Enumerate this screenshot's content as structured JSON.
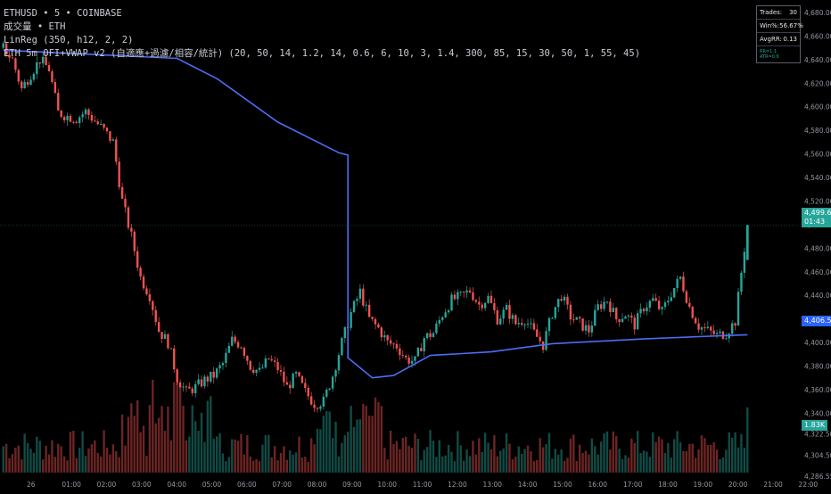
{
  "legend": {
    "line1": "ETHUSD • 5 • COINBASE",
    "line2": "成交量 • ETH",
    "line3": "LinReg (350, h12, 2, 2)",
    "line4": "ETH 5m OFI+VWAP v2 (自適應+過濾/相容/統計) (20, 50, 14, 1.2, 14, 0.6, 6, 10, 3, 1.4, 300, 85, 15, 30, 50, 1, 55, 45)"
  },
  "stats_table": {
    "trades_label": "Trades:",
    "trades_value": "30",
    "winrate_label": "Win%:",
    "winrate_value": "56.67%",
    "avgrr_label": "AvgRR:",
    "avgrr_value": "0.13",
    "footer": "RR=1:1 ATR=0.6"
  },
  "last_price": {
    "price": "4,499.63",
    "countdown": "01:43",
    "color": "#26a69a"
  },
  "vwap_price": {
    "price": "4,406.55",
    "color": "#2962ff"
  },
  "volume_tag": {
    "value": "1.83K",
    "color": "#26a69a"
  },
  "colors": {
    "up": "#26a69a",
    "down": "#ef5350",
    "vwap": "#4c6ef5",
    "bg": "#000000"
  },
  "chart_data": {
    "type": "candlestick",
    "y_ticks": [
      "4,680.00",
      "4,660.00",
      "4,640.00",
      "4,620.00",
      "4,600.00",
      "4,580.00",
      "4,560.00",
      "4,540.00",
      "4,520.00",
      "4,500.00",
      "4,480.00",
      "4,460.00",
      "4,440.00",
      "4,420.00",
      "4,400.00",
      "4,380.00",
      "4,360.00",
      "4,340.00",
      "4,322.50",
      "4,304.50",
      "4,286.55"
    ],
    "x_ticks": [
      "26",
      "01:00",
      "02:00",
      "03:00",
      "04:00",
      "05:00",
      "06:00",
      "07:00",
      "08:00",
      "09:00",
      "10:00",
      "11:00",
      "12:00",
      "13:00",
      "14:00",
      "15:00",
      "16:00",
      "17:00",
      "18:00",
      "19:00",
      "20:00",
      "21:00",
      "22:00"
    ],
    "ylim": [
      4286.55,
      4680
    ],
    "close_path": [
      [
        0,
        4650
      ],
      [
        3,
        4640
      ],
      [
        6,
        4615
      ],
      [
        9,
        4628
      ],
      [
        12,
        4640
      ],
      [
        15,
        4632
      ],
      [
        18,
        4595
      ],
      [
        21,
        4592
      ],
      [
        24,
        4590
      ],
      [
        27,
        4596
      ],
      [
        30,
        4588
      ],
      [
        33,
        4580
      ],
      [
        36,
        4570
      ],
      [
        39,
        4520
      ],
      [
        42,
        4490
      ],
      [
        45,
        4455
      ],
      [
        48,
        4440
      ],
      [
        51,
        4410
      ],
      [
        54,
        4400
      ],
      [
        57,
        4370
      ],
      [
        60,
        4358
      ],
      [
        63,
        4362
      ],
      [
        66,
        4368
      ],
      [
        69,
        4372
      ],
      [
        72,
        4382
      ],
      [
        75,
        4402
      ],
      [
        78,
        4398
      ],
      [
        81,
        4380
      ],
      [
        84,
        4375
      ],
      [
        87,
        4386
      ],
      [
        90,
        4378
      ],
      [
        93,
        4362
      ],
      [
        96,
        4372
      ],
      [
        99,
        4358
      ],
      [
        102,
        4348
      ],
      [
        105,
        4350
      ],
      [
        108,
        4372
      ],
      [
        111,
        4400
      ],
      [
        114,
        4425
      ],
      [
        117,
        4443
      ],
      [
        120,
        4420
      ],
      [
        123,
        4412
      ],
      [
        126,
        4400
      ],
      [
        129,
        4397
      ],
      [
        132,
        4386
      ],
      [
        135,
        4384
      ],
      [
        138,
        4404
      ],
      [
        141,
        4408
      ],
      [
        144,
        4424
      ],
      [
        147,
        4436
      ],
      [
        150,
        4439
      ],
      [
        153,
        4444
      ],
      [
        156,
        4432
      ],
      [
        159,
        4438
      ],
      [
        162,
        4420
      ],
      [
        165,
        4428
      ],
      [
        168,
        4416
      ],
      [
        171,
        4420
      ],
      [
        174,
        4408
      ],
      [
        177,
        4398
      ],
      [
        180,
        4425
      ],
      [
        183,
        4440
      ],
      [
        186,
        4422
      ],
      [
        189,
        4416
      ],
      [
        192,
        4410
      ],
      [
        195,
        4430
      ],
      [
        198,
        4436
      ],
      [
        201,
        4420
      ],
      [
        204,
        4424
      ],
      [
        207,
        4415
      ],
      [
        210,
        4430
      ],
      [
        213,
        4436
      ],
      [
        216,
        4426
      ],
      [
        219,
        4442
      ],
      [
        222,
        4455
      ],
      [
        225,
        4430
      ],
      [
        228,
        4414
      ],
      [
        231,
        4410
      ],
      [
        234,
        4406
      ],
      [
        237,
        4408
      ],
      [
        240,
        4418
      ],
      [
        243,
        4480
      ],
      [
        244,
        4499.63
      ]
    ],
    "vwap": [
      [
        0,
        4648
      ],
      [
        57,
        4641
      ],
      [
        70,
        4624
      ],
      [
        90,
        4587
      ],
      [
        110,
        4561
      ],
      [
        113,
        4559
      ],
      [
        113,
        4387
      ],
      [
        121,
        4370
      ],
      [
        128,
        4372
      ],
      [
        140,
        4389
      ],
      [
        160,
        4392
      ],
      [
        180,
        4399
      ],
      [
        210,
        4403
      ],
      [
        228,
        4405
      ],
      [
        244,
        4406.55
      ]
    ],
    "volume_max": 3000
  }
}
